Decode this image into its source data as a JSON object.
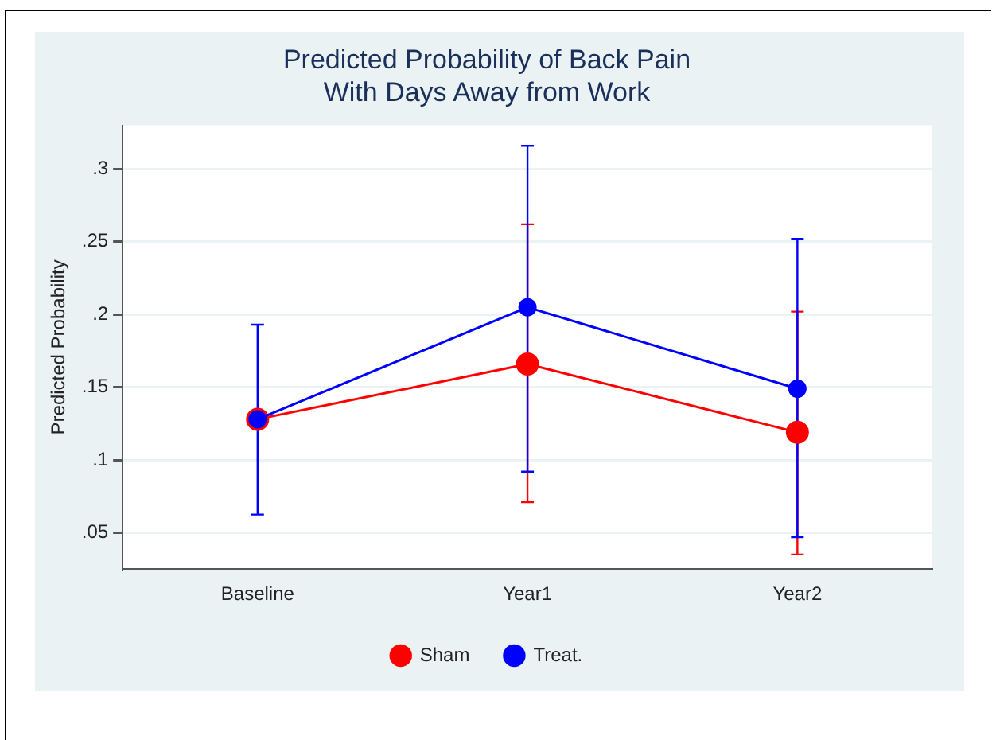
{
  "chart_data": {
    "type": "line",
    "title": "Predicted Probability of Back Pain\nWith Days Away from Work",
    "ylabel": "Predicted Probability",
    "categories": [
      "Baseline",
      "Year1",
      "Year2"
    ],
    "series": [
      {
        "name": "Sham",
        "color": "#ff0000",
        "values": [
          0.128,
          0.166,
          0.119
        ],
        "errors": [
          null,
          [
            0.071,
            0.262
          ],
          [
            0.035,
            0.202
          ]
        ]
      },
      {
        "name": "Treat.",
        "color": "#0000ff",
        "values": [
          0.128,
          0.205,
          0.149
        ],
        "errors": [
          [
            0.0625,
            0.193
          ],
          [
            0.092,
            0.316
          ],
          [
            0.047,
            0.252
          ]
        ]
      }
    ],
    "ylim": [
      0.025,
      0.33
    ],
    "yticks": [
      {
        "value": 0.05,
        "label": ".05"
      },
      {
        "value": 0.1,
        "label": ".1"
      },
      {
        "value": 0.15,
        "label": ".15"
      },
      {
        "value": 0.2,
        "label": ".2"
      },
      {
        "value": 0.25,
        "label": ".25"
      },
      {
        "value": 0.3,
        "label": ".3"
      }
    ],
    "grid": "y",
    "legend": "bottom",
    "marker": "circle",
    "line_style": "solid"
  }
}
